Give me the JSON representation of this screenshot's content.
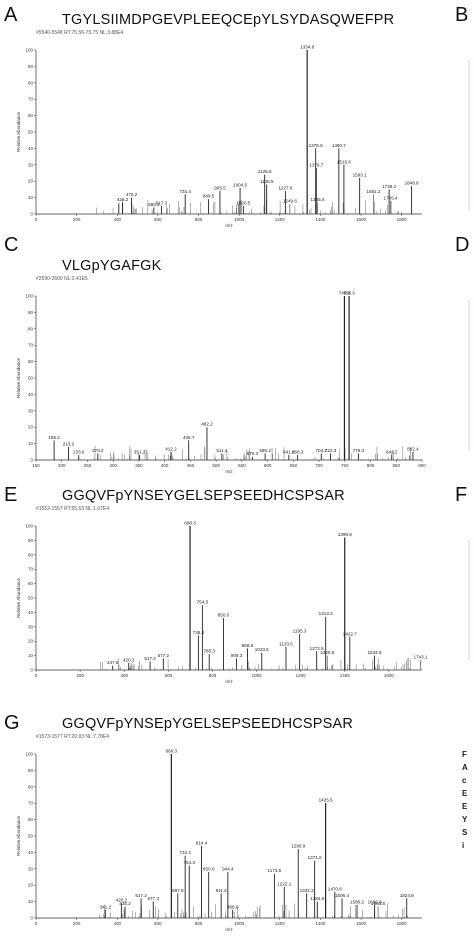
{
  "figure": {
    "caption_fragment": [
      "F",
      "A",
      "c",
      "E",
      "E",
      "Y",
      "S",
      "i"
    ],
    "colors": {
      "b_ion": "#3a4bd0",
      "y_ion": "#d0506a",
      "other": "#777777",
      "main": "#222222"
    }
  },
  "panels": [
    {
      "letter": "A",
      "peptide": "TGYLSIIMDPGEVPLEEQCEpYLSYDASQWEFPR",
      "scan": "#5540-5548 RT:75.56-75.75 NL:3.88E4"
    },
    {
      "letter": "B",
      "peptide": "",
      "scan": ""
    },
    {
      "letter": "C",
      "peptide": "VLGpYGAFGK",
      "scan": "#2590-2600 NL:2.41E5"
    },
    {
      "letter": "D",
      "peptide": "",
      "scan": ""
    },
    {
      "letter": "E",
      "peptide": "GGQVFpYNSEYGELSEPSEEDHCSPSAR",
      "scan": "#1552-1557 RT:55.63 NL:1.07E4"
    },
    {
      "letter": "F",
      "peptide": "",
      "scan": ""
    },
    {
      "letter": "G",
      "peptide": "GGQVFpYNSEpYGELSEPSEEDHCSPSAR",
      "scan": "#1573-1577 RT:20.93 NL:7.78E4"
    }
  ],
  "chart_data": [
    {
      "type": "bar",
      "title": "TGYLSIIMDPGEVPLEEQCEpYLSYDASQWEFPR",
      "xlabel": "m/z",
      "ylabel": "Relative Abundance",
      "xlim": [
        0,
        1900
      ],
      "ylim": [
        0,
        100
      ],
      "xticks": [
        0,
        200,
        400,
        600,
        800,
        1000,
        1200,
        1400,
        1600,
        1800
      ],
      "yticks": [
        0,
        10,
        20,
        30,
        40,
        50,
        60,
        70,
        80,
        90,
        100
      ],
      "peaks": [
        {
          "mz": 426.2,
          "int": 7,
          "ion": "b",
          "label": "426.2"
        },
        {
          "mz": 470.2,
          "int": 10,
          "ion": "b",
          "label": "470.2"
        },
        {
          "mz": 580.2,
          "int": 4,
          "ion": "b",
          "label": "580.2"
        },
        {
          "mz": 617.3,
          "int": 5,
          "ion": "b",
          "label": "617.3"
        },
        {
          "mz": 734.4,
          "int": 12,
          "ion": "y",
          "label": "734.4"
        },
        {
          "mz": 849.5,
          "int": 9,
          "ion": "b",
          "label": "849.5"
        },
        {
          "mz": 905.5,
          "int": 14,
          "ion": "y",
          "label": "905.5"
        },
        {
          "mz": 1004.5,
          "int": 16,
          "ion": "b",
          "label": "1004.5"
        },
        {
          "mz": 1020.5,
          "int": 5,
          "ion": "b",
          "label": "1020.5"
        },
        {
          "mz": 1125.6,
          "int": 24,
          "ion": "y",
          "label": "1125.6"
        },
        {
          "mz": 1135.5,
          "int": 18,
          "ion": "b",
          "label": "1135.5"
        },
        {
          "mz": 1227.6,
          "int": 14,
          "ion": "b",
          "label": "1227.6"
        },
        {
          "mz": 1249.6,
          "int": 6,
          "ion": "other",
          "label": "1249.6"
        },
        {
          "mz": 1334.8,
          "int": 100,
          "ion": "main",
          "label": "1334.8"
        },
        {
          "mz": 1376.6,
          "int": 40,
          "ion": "main",
          "label": "1376.6"
        },
        {
          "mz": 1379.7,
          "int": 28,
          "ion": "b",
          "label": "1379.7"
        },
        {
          "mz": 1385.6,
          "int": 7,
          "ion": "other",
          "label": "1385.6"
        },
        {
          "mz": 1490.7,
          "int": 40,
          "ion": "main",
          "label": "1490.7"
        },
        {
          "mz": 1515.6,
          "int": 30,
          "ion": "main",
          "label": "1515.6"
        },
        {
          "mz": 1593.1,
          "int": 22,
          "ion": "main",
          "label": "1593.1"
        },
        {
          "mz": 1661.2,
          "int": 12,
          "ion": "other",
          "label": "1661.2"
        },
        {
          "mz": 1738.2,
          "int": 15,
          "ion": "main",
          "label": "1738.2"
        },
        {
          "mz": 1745.4,
          "int": 8,
          "ion": "other",
          "label": "1745.4"
        },
        {
          "mz": 1848.8,
          "int": 17,
          "ion": "main",
          "label": "1848.8"
        }
      ]
    },
    {
      "type": "bar",
      "title": "VLGpYGAFGK",
      "xlabel": "m/z",
      "ylabel": "Relative Abundance",
      "xlim": [
        150,
        900
      ],
      "ylim": [
        0,
        100
      ],
      "xticks": [
        150,
        200,
        250,
        300,
        350,
        400,
        450,
        500,
        550,
        600,
        650,
        700,
        750,
        800,
        850,
        900
      ],
      "yticks": [
        0,
        10,
        20,
        30,
        40,
        50,
        60,
        70,
        80,
        90,
        100
      ],
      "peaks": [
        {
          "mz": 185.2,
          "int": 12,
          "ion": "b",
          "label": "185.2"
        },
        {
          "mz": 213.2,
          "int": 8,
          "ion": "b",
          "label": "213.2"
        },
        {
          "mz": 233.0,
          "int": 3,
          "ion": "y",
          "label": "233.0"
        },
        {
          "mz": 270.2,
          "int": 4,
          "ion": "b",
          "label": "270.2"
        },
        {
          "mz": 351.2,
          "int": 3,
          "ion": "y",
          "label": "351.2"
        },
        {
          "mz": 412.2,
          "int": 5,
          "ion": "b",
          "label": "412.2"
        },
        {
          "mz": 446.7,
          "int": 12,
          "ion": "y",
          "label": "446.7"
        },
        {
          "mz": 482.2,
          "int": 20,
          "ion": "main",
          "label": "482.2"
        },
        {
          "mz": 511.2,
          "int": 4,
          "ion": "b",
          "label": "511.2"
        },
        {
          "mz": 570.3,
          "int": 2,
          "ion": "y",
          "label": "570.3"
        },
        {
          "mz": 595.2,
          "int": 4,
          "ion": "b",
          "label": "595.2"
        },
        {
          "mz": 641.2,
          "int": 3,
          "ion": "b",
          "label": "641.2"
        },
        {
          "mz": 658.3,
          "int": 3,
          "ion": "y",
          "label": "658.3"
        },
        {
          "mz": 704.2,
          "int": 4,
          "ion": "b",
          "label": "704.2"
        },
        {
          "mz": 722.3,
          "int": 4,
          "ion": "y",
          "label": "722.3"
        },
        {
          "mz": 749.3,
          "int": 100,
          "ion": "b",
          "label": "749.3"
        },
        {
          "mz": 758.3,
          "int": 100,
          "ion": "main",
          "label": "758.3"
        },
        {
          "mz": 776.3,
          "int": 4,
          "ion": "y",
          "label": "776.3"
        },
        {
          "mz": 841.2,
          "int": 3,
          "ion": "b",
          "label": "841.2"
        },
        {
          "mz": 882.4,
          "int": 5,
          "ion": "y",
          "label": "882.4"
        }
      ]
    },
    {
      "type": "bar",
      "title": "GGQVFpYNSEYGELSEPSEEDHCSPSAR",
      "xlabel": "m/z",
      "ylabel": "Relative Abundance",
      "xlim": [
        0,
        1750
      ],
      "ylim": [
        0,
        100
      ],
      "xticks": [
        0,
        200,
        400,
        600,
        800,
        1000,
        1200,
        1400,
        1600
      ],
      "yticks": [
        0,
        10,
        20,
        30,
        40,
        50,
        60,
        70,
        80,
        90,
        100
      ],
      "peaks": [
        {
          "mz": 347.6,
          "int": 3,
          "ion": "y",
          "label": "347.6"
        },
        {
          "mz": 420.3,
          "int": 5,
          "ion": "b",
          "label": "420.3"
        },
        {
          "mz": 517.2,
          "int": 6,
          "ion": "b",
          "label": "517.2"
        },
        {
          "mz": 577.2,
          "int": 8,
          "ion": "b",
          "label": "577.2"
        },
        {
          "mz": 698.3,
          "int": 100,
          "ion": "b",
          "label": "698.3"
        },
        {
          "mz": 736.3,
          "int": 24,
          "ion": "b",
          "label": "736.3"
        },
        {
          "mz": 754.3,
          "int": 45,
          "ion": "b",
          "label": "754.3"
        },
        {
          "mz": 785.3,
          "int": 11,
          "ion": "y",
          "label": "785.3"
        },
        {
          "mz": 850.0,
          "int": 36,
          "ion": "b",
          "label": "850.0"
        },
        {
          "mz": 909.3,
          "int": 8,
          "ion": "y",
          "label": "909.3"
        },
        {
          "mz": 958.8,
          "int": 15,
          "ion": "b",
          "label": "958.8"
        },
        {
          "mz": 1023.5,
          "int": 12,
          "ion": "b",
          "label": "1023.5"
        },
        {
          "mz": 1133.5,
          "int": 16,
          "ion": "y",
          "label": "1133.5"
        },
        {
          "mz": 1195.3,
          "int": 25,
          "ion": "main",
          "label": "1195.3"
        },
        {
          "mz": 1272.5,
          "int": 13,
          "ion": "y",
          "label": "1272.5"
        },
        {
          "mz": 1313.3,
          "int": 37,
          "ion": "main",
          "label": "1313.3"
        },
        {
          "mz": 1320.5,
          "int": 10,
          "ion": "other",
          "label": "1320.5"
        },
        {
          "mz": 1399.8,
          "int": 92,
          "ion": "main",
          "label": "1399.8"
        },
        {
          "mz": 1422.7,
          "int": 23,
          "ion": "y",
          "label": "1422.7"
        },
        {
          "mz": 1534.8,
          "int": 10,
          "ion": "y",
          "label": "1534.8"
        },
        {
          "mz": 1743.1,
          "int": 7,
          "ion": "other",
          "label": "1743.1"
        }
      ]
    },
    {
      "type": "bar",
      "title": "GGQVFpYNSEpYGELSEPSEEDHCSPSAR",
      "xlabel": "m/z",
      "ylabel": "Relative Abundance",
      "xlim": [
        0,
        1900
      ],
      "ylim": [
        0,
        100
      ],
      "xticks": [
        0,
        200,
        400,
        600,
        800,
        1000,
        1200,
        1400,
        1600,
        1800
      ],
      "yticks": [
        0,
        10,
        20,
        30,
        40,
        50,
        60,
        70,
        80,
        90,
        100
      ],
      "peaks": [
        {
          "mz": 341.2,
          "int": 5,
          "ion": "b",
          "label": "341.2"
        },
        {
          "mz": 420.2,
          "int": 9,
          "ion": "y",
          "label": "420.2"
        },
        {
          "mz": 438.2,
          "int": 7,
          "ion": "b",
          "label": "438.2"
        },
        {
          "mz": 517.2,
          "int": 12,
          "ion": "y",
          "label": "517.2"
        },
        {
          "mz": 577.3,
          "int": 10,
          "ion": "b",
          "label": "577.3"
        },
        {
          "mz": 666.3,
          "int": 100,
          "ion": "b",
          "label": "666.3"
        },
        {
          "mz": 697.9,
          "int": 15,
          "ion": "b",
          "label": "697.9"
        },
        {
          "mz": 734.2,
          "int": 38,
          "ion": "y",
          "label": "734.2"
        },
        {
          "mz": 754.3,
          "int": 32,
          "ion": "b",
          "label": "754.3"
        },
        {
          "mz": 814.4,
          "int": 44,
          "ion": "y",
          "label": "814.4"
        },
        {
          "mz": 850.0,
          "int": 28,
          "ion": "b",
          "label": "850.0"
        },
        {
          "mz": 911.4,
          "int": 15,
          "ion": "b",
          "label": "911.4"
        },
        {
          "mz": 944.4,
          "int": 28,
          "ion": "main",
          "label": "944.4"
        },
        {
          "mz": 968.0,
          "int": 5,
          "ion": "b",
          "label": "968.0"
        },
        {
          "mz": 1173.5,
          "int": 27,
          "ion": "main",
          "label": "1173.5"
        },
        {
          "mz": 1222.1,
          "int": 19,
          "ion": "b",
          "label": "1222.1"
        },
        {
          "mz": 1290.9,
          "int": 42,
          "ion": "main",
          "label": "1290.9"
        },
        {
          "mz": 1332.3,
          "int": 15,
          "ion": "b",
          "label": "1332.3"
        },
        {
          "mz": 1371.6,
          "int": 35,
          "ion": "main",
          "label": "1371.6"
        },
        {
          "mz": 1384.6,
          "int": 10,
          "ion": "b",
          "label": "1384.6"
        },
        {
          "mz": 1425.5,
          "int": 70,
          "ion": "main",
          "label": "1425.5"
        },
        {
          "mz": 1470.8,
          "int": 16,
          "ion": "b",
          "label": "1470.8"
        },
        {
          "mz": 1506.4,
          "int": 12,
          "ion": "y",
          "label": "1506.4"
        },
        {
          "mz": 1580.2,
          "int": 8,
          "ion": "main",
          "label": "1580.2"
        },
        {
          "mz": 1666.8,
          "int": 8,
          "ion": "b",
          "label": "1666.8"
        },
        {
          "mz": 1683.8,
          "int": 7,
          "ion": "other",
          "label": "1683.8"
        },
        {
          "mz": 1824.8,
          "int": 12,
          "ion": "main",
          "label": "1824.8"
        }
      ]
    }
  ]
}
